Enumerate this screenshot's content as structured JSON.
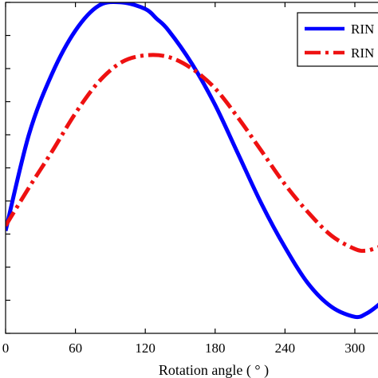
{
  "chart_data": {
    "type": "line",
    "xlabel": "Rotation angle ( ° )",
    "ylabel": "",
    "xlim": [
      0,
      324
    ],
    "ylim": [
      -1.0,
      1.0
    ],
    "x_ticks": [
      0,
      60,
      120,
      180,
      240,
      300
    ],
    "x_tick_labels": [
      "0",
      "60",
      "120",
      "180",
      "240",
      "300"
    ],
    "grid": false,
    "legend": {
      "placement": "top-right"
    },
    "series": [
      {
        "name": "RIN",
        "color": "#0000ff",
        "line_style": "solid",
        "x": [
          0,
          20,
          40,
          60,
          80,
          100,
          120,
          130,
          140,
          160,
          180,
          200,
          220,
          240,
          260,
          280,
          300,
          310,
          320,
          324
        ],
        "y": [
          -0.38,
          0.2,
          0.57,
          0.83,
          0.98,
          1.0,
          0.96,
          0.9,
          0.83,
          0.63,
          0.38,
          0.08,
          -0.22,
          -0.48,
          -0.7,
          -0.84,
          -0.9,
          -0.88,
          -0.83,
          -0.8
        ]
      },
      {
        "name": "RIN",
        "color": "#ee1111",
        "line_style": "dash-dot",
        "x": [
          0,
          20,
          40,
          60,
          80,
          100,
          120,
          140,
          160,
          180,
          200,
          220,
          240,
          260,
          280,
          300,
          310,
          320,
          324
        ],
        "y": [
          -0.35,
          -0.12,
          0.1,
          0.33,
          0.52,
          0.64,
          0.68,
          0.67,
          0.6,
          0.48,
          0.3,
          0.1,
          -0.1,
          -0.27,
          -0.41,
          -0.49,
          -0.5,
          -0.48,
          -0.47
        ]
      }
    ]
  }
}
